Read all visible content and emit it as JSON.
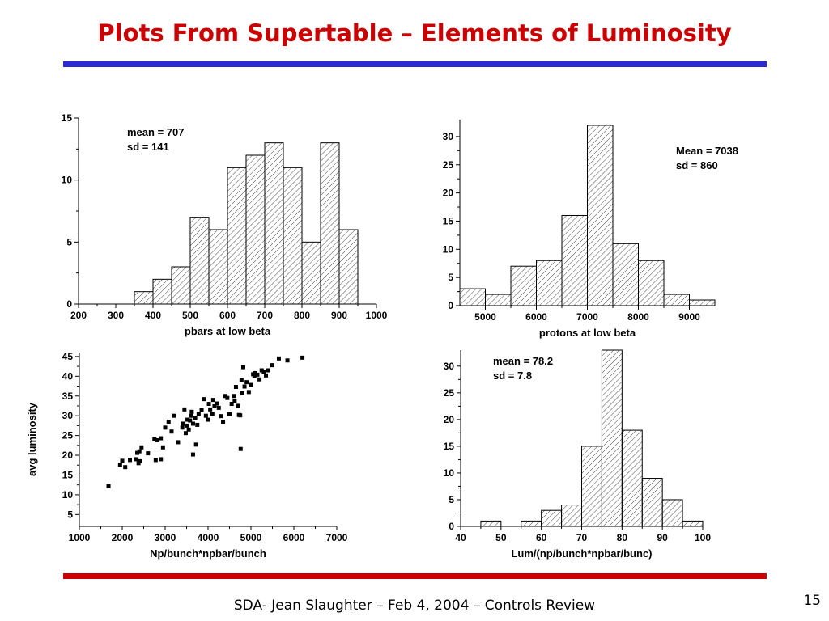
{
  "slide": {
    "title": "Plots From Supertable – Elements of Luminosity",
    "footer": "SDA- Jean Slaughter – Feb 4, 2004 – Controls Review",
    "page_number": "15",
    "title_color": "#cc0000",
    "top_rule_color": "#2b2bd6",
    "bottom_rule_color": "#cc0000"
  },
  "chart_data": [
    {
      "type": "bar",
      "xlabel": "pbars at low beta",
      "ylabel": "",
      "xlim": [
        200,
        1000
      ],
      "ylim": [
        0,
        15
      ],
      "xticks": [
        200,
        300,
        400,
        500,
        600,
        700,
        800,
        900,
        1000
      ],
      "yticks": [
        0,
        5,
        10,
        15
      ],
      "bin_width": 50,
      "bin_starts": [
        350,
        400,
        450,
        500,
        550,
        600,
        650,
        700,
        750,
        800,
        850,
        900
      ],
      "values": [
        1,
        2,
        3,
        7,
        6,
        11,
        12,
        13,
        11,
        5,
        13,
        6
      ],
      "fill": "hatched",
      "annotations": [
        "mean = 707",
        "sd = 141"
      ]
    },
    {
      "type": "bar",
      "xlabel": "protons at low beta",
      "ylabel": "",
      "xlim": [
        4500,
        9500
      ],
      "ylim": [
        0,
        33
      ],
      "xticks": [
        5000,
        6000,
        7000,
        8000,
        9000
      ],
      "yticks": [
        0,
        5,
        10,
        15,
        20,
        25,
        30
      ],
      "bin_width": 500,
      "bin_starts": [
        4500,
        5000,
        5500,
        6000,
        6500,
        7000,
        7500,
        8000,
        8500,
        9000
      ],
      "values": [
        3,
        2,
        7,
        8,
        16,
        32,
        11,
        8,
        2,
        1
      ],
      "fill": "hatched",
      "annotations": [
        "Mean = 7038",
        "sd = 860"
      ]
    },
    {
      "type": "scatter",
      "xlabel": "Np/bunch*npbar/bunch",
      "ylabel": "avg luminosity",
      "xlim": [
        1000,
        7000
      ],
      "ylim": [
        2,
        46
      ],
      "xticks": [
        1000,
        2000,
        3000,
        4000,
        5000,
        6000,
        7000
      ],
      "yticks": [
        5,
        10,
        15,
        20,
        25,
        30,
        35,
        40,
        45
      ],
      "points": [
        [
          1680,
          12.2
        ],
        [
          1950,
          17.6
        ],
        [
          2000,
          18.6
        ],
        [
          2070,
          17
        ],
        [
          2180,
          18.8
        ],
        [
          2330,
          19
        ],
        [
          2350,
          20.6
        ],
        [
          2380,
          18
        ],
        [
          2400,
          21
        ],
        [
          2420,
          18.5
        ],
        [
          2450,
          22
        ],
        [
          2600,
          20.5
        ],
        [
          2750,
          24
        ],
        [
          2780,
          18.8
        ],
        [
          2820,
          23.8
        ],
        [
          2900,
          19
        ],
        [
          2900,
          24.3
        ],
        [
          2950,
          22
        ],
        [
          3000,
          27
        ],
        [
          3080,
          28.5
        ],
        [
          3150,
          26
        ],
        [
          3200,
          30
        ],
        [
          3300,
          23.3
        ],
        [
          3400,
          27
        ],
        [
          3420,
          28
        ],
        [
          3450,
          31.6
        ],
        [
          3480,
          25.6
        ],
        [
          3500,
          27.5
        ],
        [
          3520,
          29
        ],
        [
          3550,
          26.5
        ],
        [
          3580,
          28.8
        ],
        [
          3600,
          30
        ],
        [
          3620,
          31
        ],
        [
          3650,
          28
        ],
        [
          3650,
          20.2
        ],
        [
          3700,
          29.5
        ],
        [
          3720,
          22.7
        ],
        [
          3750,
          27.7
        ],
        [
          3780,
          30.5
        ],
        [
          3850,
          31.5
        ],
        [
          3900,
          34.2
        ],
        [
          3950,
          30
        ],
        [
          4000,
          29
        ],
        [
          4020,
          33
        ],
        [
          4050,
          31.6
        ],
        [
          4100,
          30.5
        ],
        [
          4120,
          34
        ],
        [
          4150,
          32.4
        ],
        [
          4200,
          33.1
        ],
        [
          4250,
          32
        ],
        [
          4300,
          29.9
        ],
        [
          4350,
          28.5
        ],
        [
          4400,
          35
        ],
        [
          4450,
          34.5
        ],
        [
          4500,
          30.4
        ],
        [
          4550,
          33
        ],
        [
          4600,
          35
        ],
        [
          4620,
          33.7
        ],
        [
          4650,
          37.3
        ],
        [
          4700,
          32.5
        ],
        [
          4720,
          30.2
        ],
        [
          4750,
          30.1
        ],
        [
          4760,
          21.6
        ],
        [
          4780,
          39
        ],
        [
          4800,
          35.7
        ],
        [
          4820,
          42.3
        ],
        [
          4850,
          37.4
        ],
        [
          4900,
          38.5
        ],
        [
          4950,
          36
        ],
        [
          5000,
          37.8
        ],
        [
          5050,
          40.5
        ],
        [
          5080,
          40
        ],
        [
          5100,
          40.8
        ],
        [
          5150,
          40.4
        ],
        [
          5200,
          39.2
        ],
        [
          5250,
          41.5
        ],
        [
          5300,
          41
        ],
        [
          5350,
          40.2
        ],
        [
          5400,
          41.5
        ],
        [
          5500,
          42.8
        ],
        [
          5650,
          44.5
        ],
        [
          5850,
          44
        ],
        [
          6200,
          44.7
        ]
      ],
      "marker": "square"
    },
    {
      "type": "bar",
      "xlabel": "Lum/(np/bunch*npbar/bunc)",
      "ylabel": "",
      "xlim": [
        40,
        100
      ],
      "ylim": [
        0,
        33
      ],
      "xticks": [
        40,
        50,
        60,
        70,
        80,
        90,
        100
      ],
      "yticks": [
        0,
        5,
        10,
        15,
        20,
        25,
        30
      ],
      "bin_width": 5,
      "bin_starts": [
        45,
        50,
        55,
        60,
        65,
        70,
        75,
        80,
        85,
        90,
        95
      ],
      "values": [
        1,
        0,
        1,
        3,
        4,
        15,
        33,
        18,
        9,
        5,
        1
      ],
      "fill": "hatched",
      "annotations": [
        "mean = 78.2",
        "sd = 7.8"
      ]
    }
  ]
}
